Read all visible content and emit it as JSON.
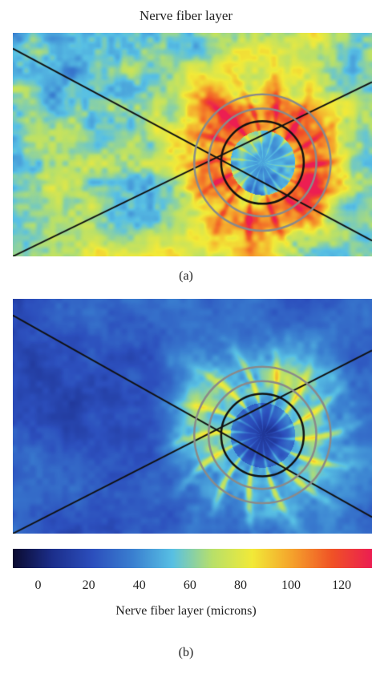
{
  "figure_title": "Nerve fiber layer",
  "panels": [
    {
      "label": "(a)",
      "view": "nerve fiber layer thickness map",
      "overall_level": "thick",
      "overlay": "two crossing scan lines and three concentric circles around the optic disc"
    },
    {
      "label": "(b)",
      "view": "nerve fiber layer thickness map",
      "overall_level": "thin",
      "overlay": "two crossing scan lines and three concentric circles around the optic disc"
    }
  ],
  "colorbar": {
    "title": "Nerve fiber layer (microns)",
    "range": [
      -10,
      132
    ],
    "ticks": [
      "0",
      "20",
      "40",
      "60",
      "80",
      "100",
      "120"
    ],
    "tick_values": [
      0,
      20,
      40,
      60,
      80,
      100,
      120
    ],
    "colors": [
      "#0b0b30",
      "#1c2f8c",
      "#2c4fbd",
      "#3a7fd0",
      "#58c0e4",
      "#b8e06a",
      "#f2ea38",
      "#f5a22c",
      "#f05226",
      "#ec1e52"
    ]
  }
}
